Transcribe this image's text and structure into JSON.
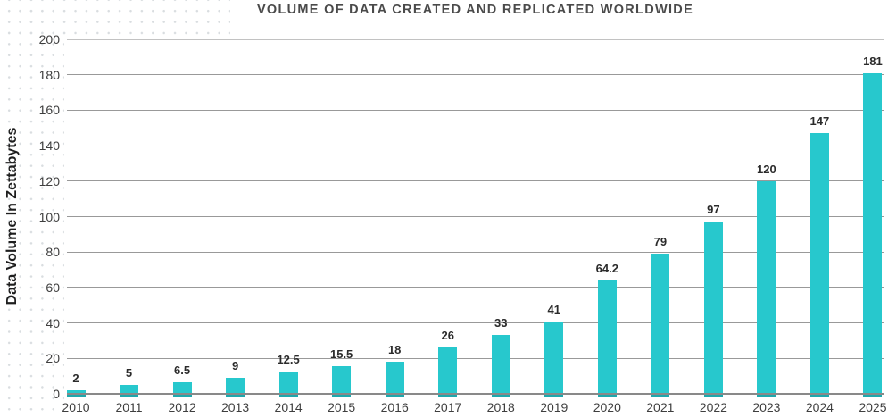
{
  "header": {
    "title": "VOLUME OF DATA CREATED AND REPLICATED WORLDWIDE"
  },
  "chart_data": {
    "type": "bar",
    "title": "VOLUME OF DATA CREATED AND REPLICATED WORLDWIDE",
    "categories": [
      "2010",
      "2011",
      "2012",
      "2013",
      "2014",
      "2015",
      "2016",
      "2017",
      "2018",
      "2019",
      "2020",
      "2021",
      "2022",
      "2023",
      "2024",
      "2025"
    ],
    "values": [
      2,
      5,
      6.5,
      9,
      12.5,
      15.5,
      18,
      26,
      33,
      41,
      64.2,
      79,
      97,
      120,
      147,
      181
    ],
    "value_labels": [
      "2",
      "5",
      "6.5",
      "9",
      "12.5",
      "15.5",
      "18",
      "26",
      "33",
      "41",
      "64.2",
      "79",
      "97",
      "120",
      "147",
      "181"
    ],
    "xlabel": "",
    "ylabel": "Data Volume In Zettabytes",
    "ylim": [
      0,
      200
    ],
    "yticks": [
      0,
      20,
      40,
      60,
      80,
      100,
      120,
      140,
      160,
      180,
      200
    ],
    "ytick_labels": [
      "0",
      "20",
      "40",
      "60",
      "80",
      "100",
      "120",
      "140",
      "160",
      "180",
      "200"
    ],
    "grid": "horizontal",
    "legend": "none",
    "colors": {
      "bar": "#27c8cd",
      "bar_bottom_cap": "#1ea7ac",
      "gridline": "#999999",
      "top_gridline": "#c2c2c2",
      "axis_line": "#898989",
      "tick_label": "#3e3e3e",
      "value_label": "#2b2b2b",
      "title": "#4a4a4a",
      "background_dot": "#d9dde0"
    }
  }
}
